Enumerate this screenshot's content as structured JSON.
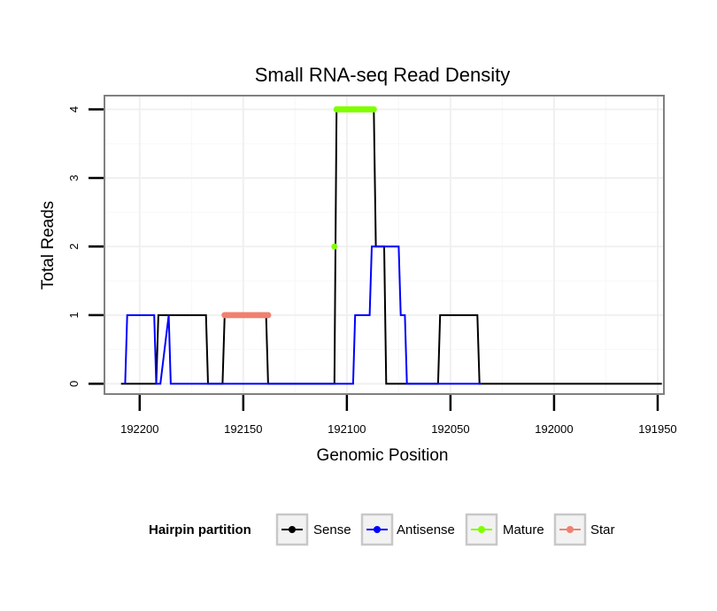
{
  "chart_data": {
    "type": "line",
    "title": "Small RNA-seq Read Density",
    "xlabel": "Genomic Position",
    "ylabel": "Total Reads",
    "x_reversed": true,
    "xlim": [
      192217,
      191947
    ],
    "ylim": [
      -0.15,
      4.2
    ],
    "x_ticks": [
      192200,
      192150,
      192100,
      192050,
      192000,
      191950
    ],
    "x_tick_labels": [
      "192200",
      "192150",
      "192100",
      "192050",
      "192000",
      "191950"
    ],
    "y_ticks": [
      0,
      1,
      2,
      3,
      4
    ],
    "y_tick_labels": [
      "0",
      "1",
      "2",
      "3",
      "4"
    ],
    "grid": true,
    "legend": {
      "title": "Hairpin partition",
      "position": "bottom",
      "entries": [
        {
          "label": "Sense",
          "color": "#000000"
        },
        {
          "label": "Antisense",
          "color": "#0000ff"
        },
        {
          "label": "Mature",
          "color": "#7fff00"
        },
        {
          "label": "Star",
          "color": "#f08070"
        }
      ]
    },
    "series": [
      {
        "name": "Sense",
        "color": "#000000",
        "kind": "line",
        "x": [
          192209,
          192192,
          192191,
          192168,
          192167,
          192160,
          192159,
          192139,
          192138,
          192106,
          192105,
          192087,
          192086,
          192082,
          192081,
          192056,
          192055,
          192037,
          192036,
          191948
        ],
        "y": [
          0,
          0,
          1,
          1,
          0,
          0,
          1,
          1,
          0,
          0,
          4,
          4,
          2,
          2,
          0,
          0,
          1,
          1,
          0,
          0
        ]
      },
      {
        "name": "Antisense",
        "color": "#0000ff",
        "kind": "line",
        "x": [
          192207,
          192206,
          192193,
          192192,
          192190,
          192186,
          192185,
          192139,
          192138,
          192097,
          192096,
          192089,
          192088,
          192075,
          192074,
          192072,
          192071,
          192036,
          192035
        ],
        "y": [
          0,
          1,
          1,
          0,
          0,
          1,
          0,
          0,
          0,
          0,
          1,
          1,
          2,
          2,
          1,
          1,
          0,
          0,
          0
        ]
      },
      {
        "name": "Mature",
        "color": "#7fff00",
        "kind": "points",
        "x": [
          192105,
          192104,
          192103,
          192102,
          192101,
          192100,
          192099,
          192098,
          192097,
          192096,
          192095,
          192094,
          192093,
          192092,
          192091,
          192090,
          192089,
          192088,
          192087,
          192106
        ],
        "y": [
          4,
          4,
          4,
          4,
          4,
          4,
          4,
          4,
          4,
          4,
          4,
          4,
          4,
          4,
          4,
          4,
          4,
          4,
          4,
          2
        ]
      },
      {
        "name": "Star",
        "color": "#f08070",
        "kind": "points",
        "x": [
          192159,
          192158,
          192157,
          192156,
          192155,
          192154,
          192153,
          192152,
          192151,
          192150,
          192149,
          192148,
          192147,
          192146,
          192145,
          192144,
          192143,
          192142,
          192141,
          192140,
          192139,
          192138
        ],
        "y": [
          1,
          1,
          1,
          1,
          1,
          1,
          1,
          1,
          1,
          1,
          1,
          1,
          1,
          1,
          1,
          1,
          1,
          1,
          1,
          1,
          1,
          1
        ]
      }
    ]
  }
}
